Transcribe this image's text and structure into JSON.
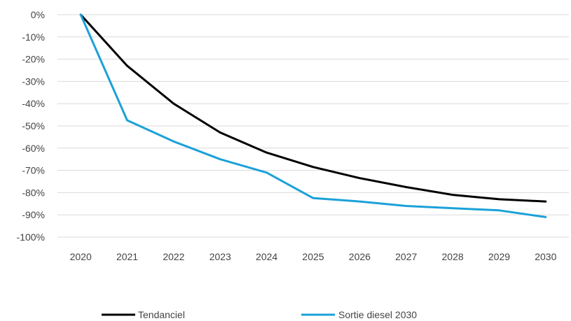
{
  "chart_data": {
    "type": "line",
    "x": [
      "2020",
      "2021",
      "2022",
      "2023",
      "2024",
      "2025",
      "2026",
      "2027",
      "2028",
      "2029",
      "2030"
    ],
    "series": [
      {
        "name": "Tendanciel",
        "color": "#000000",
        "values": [
          0,
          -23,
          -40,
          -53,
          -62,
          -68.5,
          -73.5,
          -77.5,
          -81,
          -83,
          -84
        ]
      },
      {
        "name": "Sortie diesel 2030",
        "color": "#1ba1d8",
        "values": [
          0,
          -47.5,
          -57,
          -65,
          -71,
          -82.5,
          -84,
          -86,
          -87,
          -88,
          -91
        ]
      }
    ],
    "y_ticks": [
      "0%",
      "-10%",
      "-20%",
      "-30%",
      "-40%",
      "-50%",
      "-60%",
      "-70%",
      "-80%",
      "-90%",
      "-100%"
    ],
    "ylim": [
      -100,
      0
    ],
    "y_unit": "%",
    "grid": "horizontal",
    "legend_position": "bottom"
  }
}
